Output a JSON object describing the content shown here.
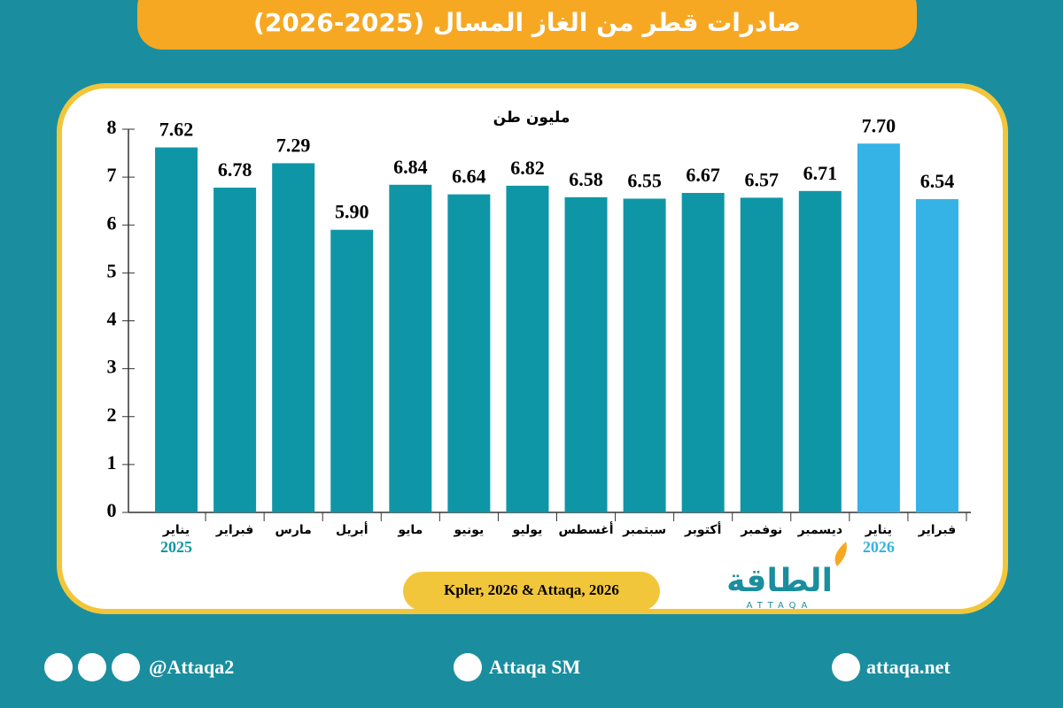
{
  "chart_data": {
    "type": "bar",
    "title": "صادرات قطر من الغاز المسال (2025-2026)",
    "unit_label": "مليون طن",
    "categories": [
      "يناير",
      "فبراير",
      "مارس",
      "أبريل",
      "مايو",
      "يونيو",
      "يوليو",
      "أغسطس",
      "سبتمبر",
      "أكتوبر",
      "نوفمبر",
      "ديسمبر",
      "يناير",
      "فبراير"
    ],
    "year_labels": [
      "2025",
      null,
      null,
      null,
      null,
      null,
      null,
      null,
      null,
      null,
      null,
      null,
      "2026",
      null
    ],
    "values": [
      7.62,
      6.78,
      7.29,
      5.9,
      6.84,
      6.64,
      6.82,
      6.58,
      6.55,
      6.67,
      6.57,
      6.71,
      7.7,
      6.54
    ],
    "value_labels": [
      "7.62",
      "6.78",
      "7.29",
      "5.90",
      "6.84",
      "6.64",
      "6.82",
      "6.58",
      "6.55",
      "6.67",
      "6.57",
      "6.71",
      "7.70",
      "6.54"
    ],
    "colors": [
      "#0f96a6",
      "#0f96a6",
      "#0f96a6",
      "#0f96a6",
      "#0f96a6",
      "#0f96a6",
      "#0f96a6",
      "#0f96a6",
      "#0f96a6",
      "#0f96a6",
      "#0f96a6",
      "#0f96a6",
      "#35b3e6",
      "#35b3e6"
    ],
    "ylim": [
      0,
      8
    ],
    "yticks": [
      0,
      1,
      2,
      3,
      4,
      5,
      6,
      7,
      8
    ],
    "grid": false
  },
  "source": "Kpler, 2026 & Attaqa, 2026",
  "brand": {
    "name": "الطاقة",
    "latin": "ATTAQA"
  },
  "footer": {
    "social": "@Attaqa2",
    "youtube": "Attaqa SM",
    "website": "attaqa.net"
  }
}
